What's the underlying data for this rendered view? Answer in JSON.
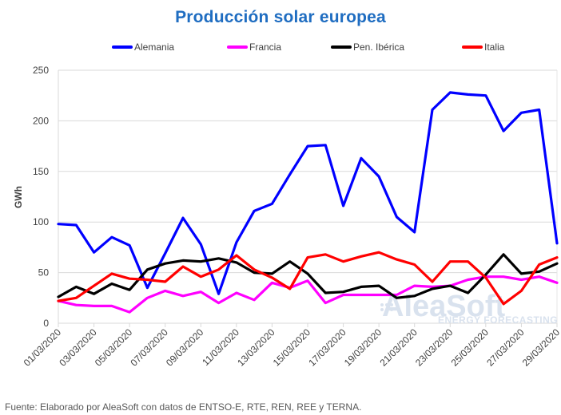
{
  "chart_data": {
    "type": "line",
    "title": "Producción solar europea",
    "xlabel": "",
    "ylabel": "GWh",
    "ylim": [
      0,
      250
    ],
    "yticks": [
      0,
      50,
      100,
      150,
      200,
      250
    ],
    "grid": true,
    "legend_position": "top",
    "x": [
      "01/03/2020",
      "02/03/2020",
      "03/03/2020",
      "04/03/2020",
      "05/03/2020",
      "06/03/2020",
      "07/03/2020",
      "08/03/2020",
      "09/03/2020",
      "10/03/2020",
      "11/03/2020",
      "12/03/2020",
      "13/03/2020",
      "14/03/2020",
      "15/03/2020",
      "16/03/2020",
      "17/03/2020",
      "18/03/2020",
      "19/03/2020",
      "20/03/2020",
      "21/03/2020",
      "22/03/2020",
      "23/03/2020",
      "24/03/2020",
      "25/03/2020",
      "26/03/2020",
      "27/03/2020",
      "28/03/2020",
      "29/03/2020"
    ],
    "xtick_labels": [
      "01/03/2020",
      "03/03/2020",
      "05/03/2020",
      "07/03/2020",
      "09/03/2020",
      "11/03/2020",
      "13/03/2020",
      "15/03/2020",
      "17/03/2020",
      "19/03/2020",
      "21/03/2020",
      "23/03/2020",
      "25/03/2020",
      "27/03/2020",
      "29/03/2020"
    ],
    "series": [
      {
        "name": "Alemania",
        "color": "#0000ff",
        "values": [
          98,
          97,
          70,
          85,
          77,
          35,
          69,
          104,
          78,
          29,
          80,
          111,
          118,
          147,
          175,
          176,
          116,
          163,
          145,
          105,
          90,
          211,
          228,
          226,
          225,
          190,
          208,
          211,
          79
        ]
      },
      {
        "name": "Francia",
        "color": "#ff00ff",
        "values": [
          22,
          18,
          17,
          17,
          11,
          25,
          32,
          27,
          31,
          20,
          30,
          23,
          40,
          35,
          42,
          20,
          28,
          28,
          28,
          28,
          37,
          36,
          37,
          43,
          46,
          46,
          43,
          46,
          40
        ]
      },
      {
        "name": "Pen. Ibérica",
        "color": "#000000",
        "values": [
          26,
          36,
          29,
          39,
          33,
          53,
          59,
          62,
          61,
          64,
          60,
          50,
          49,
          61,
          49,
          30,
          31,
          36,
          37,
          25,
          27,
          34,
          37,
          30,
          48,
          68,
          49,
          51,
          59
        ]
      },
      {
        "name": "Italia",
        "color": "#ff0000",
        "values": [
          22,
          25,
          37,
          49,
          44,
          43,
          41,
          56,
          46,
          53,
          67,
          53,
          45,
          34,
          65,
          68,
          61,
          66,
          70,
          63,
          58,
          41,
          61,
          61,
          45,
          19,
          32,
          58,
          65
        ]
      }
    ]
  },
  "watermark": {
    "brand": "AleaSoft",
    "tagline": "ENERGY FORECASTING"
  },
  "footer": "Fuente: Elaborado por AleaSoft con datos de ENTSO-E, RTE, REN, REE y TERNA."
}
